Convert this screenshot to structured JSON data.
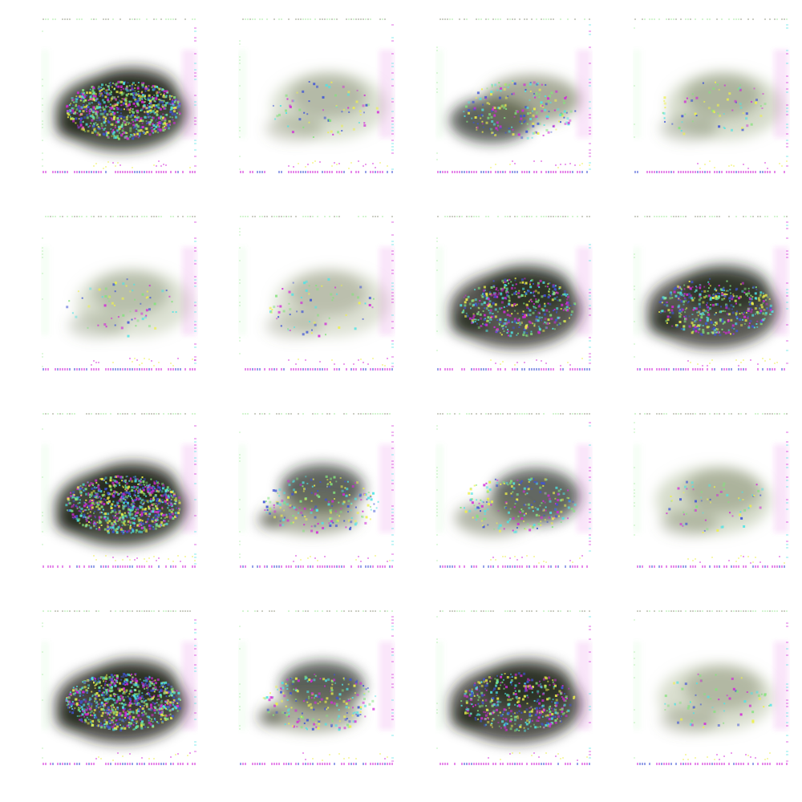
{
  "grid": {
    "rows": 4,
    "columns": 4,
    "background": "#ffffff",
    "palette": {
      "dark": "#1f2318",
      "olive": "#6d7456",
      "sage": "#aab694",
      "noise_magenta": "#d22ad8",
      "noise_yellow": "#eef04a",
      "noise_green": "#83e37c",
      "noise_cyan": "#4fe3e4",
      "noise_blue": "#3f54d6"
    },
    "samples": [
      {
        "variant": "dense-bright-center",
        "intensity": 0.95
      },
      {
        "variant": "faint-blur",
        "intensity": 0.45
      },
      {
        "variant": "dark-left",
        "intensity": 0.72
      },
      {
        "variant": "wide-faint",
        "intensity": 0.58
      },
      {
        "variant": "faint-blur",
        "intensity": 0.38
      },
      {
        "variant": "faint-blur",
        "intensity": 0.35
      },
      {
        "variant": "noisy-car",
        "intensity": 0.82
      },
      {
        "variant": "noisy-car",
        "intensity": 0.8
      },
      {
        "variant": "dense-bright-center",
        "intensity": 0.98
      },
      {
        "variant": "two-blobs",
        "intensity": 0.7
      },
      {
        "variant": "dark-right",
        "intensity": 0.68
      },
      {
        "variant": "wide-faint",
        "intensity": 0.6
      },
      {
        "variant": "dense-bright-center",
        "intensity": 0.92
      },
      {
        "variant": "two-blobs",
        "intensity": 0.74
      },
      {
        "variant": "noisy-car",
        "intensity": 0.85
      },
      {
        "variant": "faint-blur",
        "intensity": 0.5
      }
    ]
  }
}
